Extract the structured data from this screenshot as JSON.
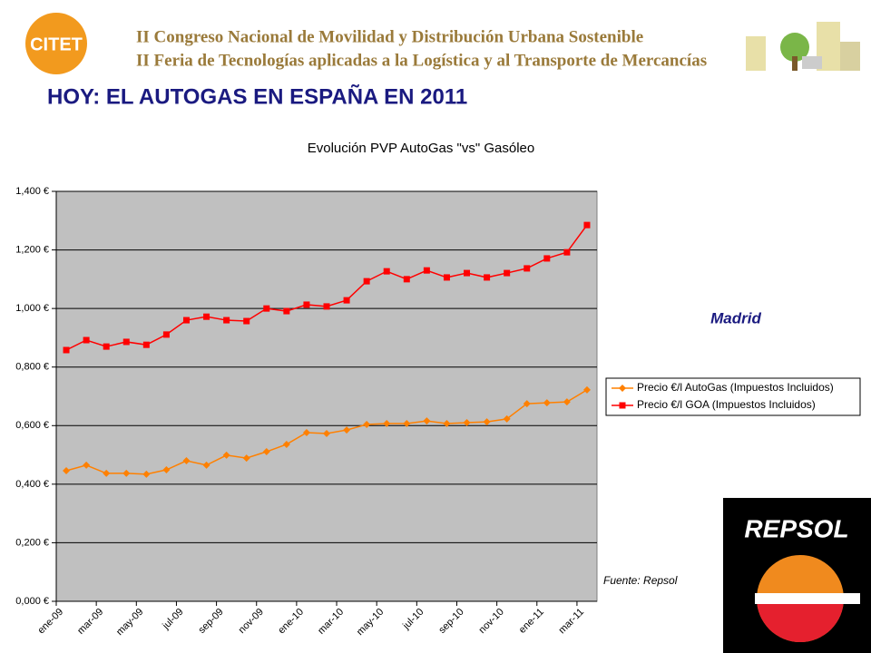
{
  "header": {
    "logo": "CITET",
    "line1": "II Congreso Nacional de Movilidad y Distribución Urbana Sostenible",
    "line2": "II Feria de Tecnologías aplicadas a la Logística y al Transporte de Mercancías"
  },
  "slide_title": "HOY: EL AUTOGAS EN ESPAÑA EN 2011",
  "region_label": "Madrid",
  "source": "Fuente: Repsol",
  "sponsor_logo": "REPSOL",
  "chart_data": {
    "type": "line",
    "title": "Evolución PVP AutoGas \"vs\" Gasóleo",
    "categories": [
      "ene-09",
      null,
      "mar-09",
      null,
      "may-09",
      null,
      "jul-09",
      null,
      "sep-09",
      null,
      "nov-09",
      null,
      "ene-10",
      null,
      "mar-10",
      null,
      "may-10",
      null,
      "jul-10",
      null,
      "sep-10",
      null,
      "nov-10",
      null,
      "ene-11",
      null,
      "mar-11"
    ],
    "series": [
      {
        "name": "Precio €/l AutoGas (Impuestos Incluidos)",
        "color": "#ff8000",
        "marker": "diamond",
        "values": [
          0.446,
          0.465,
          0.437,
          0.437,
          0.434,
          0.449,
          0.48,
          0.465,
          0.499,
          0.489,
          0.511,
          0.536,
          0.576,
          0.573,
          0.585,
          0.604,
          0.607,
          0.607,
          0.616,
          0.607,
          0.61,
          0.613,
          0.623,
          0.675,
          0.678,
          0.681,
          0.722
        ]
      },
      {
        "name": "Precio €/l GOA (Impuestos Incluidos)",
        "color": "#ff0000",
        "marker": "square",
        "values": [
          0.858,
          0.892,
          0.87,
          0.886,
          0.876,
          0.911,
          0.96,
          0.972,
          0.96,
          0.957,
          1.0,
          0.991,
          1.013,
          1.007,
          1.028,
          1.093,
          1.127,
          1.1,
          1.13,
          1.106,
          1.121,
          1.106,
          1.121,
          1.137,
          1.171,
          1.192,
          1.285
        ]
      }
    ],
    "ylim": [
      0,
      1.4
    ],
    "yticks": [
      {
        "value": 0,
        "label": "0,000 €"
      },
      {
        "value": 0.2,
        "label": "0,200 €"
      },
      {
        "value": 0.4,
        "label": "0,400 €"
      },
      {
        "value": 0.6,
        "label": "0,600 €"
      },
      {
        "value": 0.8,
        "label": "0,800 €"
      },
      {
        "value": 1.0,
        "label": "1,000 €"
      },
      {
        "value": 1.2,
        "label": "1,200 €"
      },
      {
        "value": 1.4,
        "label": "1,400 €"
      }
    ],
    "grid": true,
    "plot_background": "#c0c0c0",
    "legend": "right"
  }
}
